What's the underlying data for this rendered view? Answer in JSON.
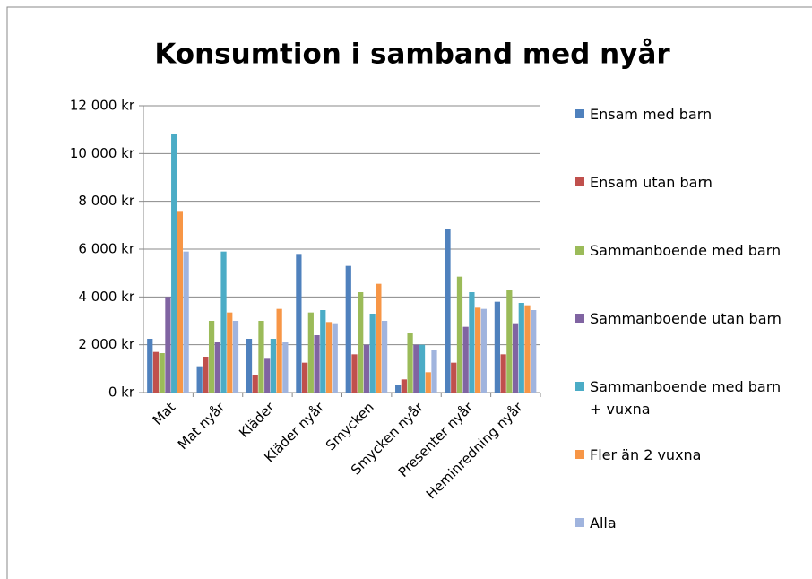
{
  "chart_data": {
    "type": "bar",
    "title": "Konsumtion i samband med nyår",
    "categories": [
      "Mat",
      "Mat nyår",
      "Kläder",
      "Kläder nyår",
      "Smycken",
      "Smycken nyår",
      "Presenter nyår",
      "Heminredning nyår"
    ],
    "series": [
      {
        "name": "Ensam med barn",
        "color": "#4f81bd",
        "values": [
          2250,
          1100,
          2250,
          5800,
          5300,
          300,
          6850,
          3800
        ]
      },
      {
        "name": "Ensam utan barn",
        "color": "#c0504d",
        "values": [
          1700,
          1500,
          750,
          1250,
          1600,
          550,
          1250,
          1600
        ]
      },
      {
        "name": "Sammanboende med barn",
        "color": "#9bbb59",
        "values": [
          1650,
          3000,
          3000,
          3350,
          4200,
          2500,
          4850,
          4300
        ]
      },
      {
        "name": "Sammanboende utan barn",
        "color": "#8064a2",
        "values": [
          4000,
          2100,
          1450,
          2400,
          2000,
          2000,
          2750,
          2900
        ]
      },
      {
        "name": "Sammanboende med barn + vuxna",
        "color": "#4bacc6",
        "values": [
          10800,
          5900,
          2250,
          3450,
          3300,
          2000,
          4200,
          3750
        ]
      },
      {
        "name": "Fler än 2 vuxna",
        "color": "#f79646",
        "values": [
          7600,
          3350,
          3500,
          2950,
          4550,
          850,
          3550,
          3650
        ]
      },
      {
        "name": "Alla",
        "color": "#a0b4de",
        "values": [
          5900,
          3000,
          2100,
          2900,
          3000,
          1800,
          3500,
          3450
        ]
      }
    ],
    "ylim": [
      0,
      12000
    ],
    "yticks": [
      {
        "value": 0,
        "label": "0 kr"
      },
      {
        "value": 2000,
        "label": "2 000 kr"
      },
      {
        "value": 4000,
        "label": "4 000 kr"
      },
      {
        "value": 6000,
        "label": "6 000 kr"
      },
      {
        "value": 8000,
        "label": "8 000 kr"
      },
      {
        "value": 10000,
        "label": "10 000 kr"
      },
      {
        "value": 12000,
        "label": "12 000 kr"
      }
    ],
    "grid": true,
    "legend": "right"
  }
}
